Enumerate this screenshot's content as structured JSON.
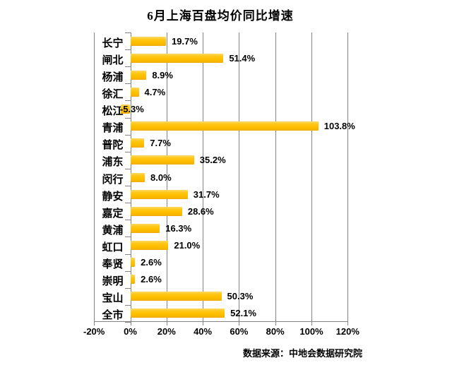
{
  "title": "6月上海百盘均价同比增速",
  "source": "数据来源：中地会数据研究院",
  "chart_data": {
    "type": "bar",
    "orientation": "horizontal",
    "title": "6月上海百盘均价同比增速",
    "categories": [
      "长宁",
      "闸北",
      "杨浦",
      "徐汇",
      "松江",
      "青浦",
      "普陀",
      "浦东",
      "闵行",
      "静安",
      "嘉定",
      "黄浦",
      "虹口",
      "奉贤",
      "崇明",
      "宝山",
      "全市"
    ],
    "values": [
      19.7,
      51.4,
      8.9,
      4.7,
      -5.3,
      103.8,
      7.7,
      35.2,
      8.0,
      31.7,
      28.6,
      16.3,
      21.0,
      2.6,
      2.6,
      50.3,
      52.1
    ],
    "data_labels": [
      "19.7%",
      "51.4%",
      "8.9%",
      "4.7%",
      "-5.3%",
      "103.8%",
      "7.7%",
      "35.2%",
      "8.0%",
      "31.7%",
      "28.6%",
      "16.3%",
      "21.0%",
      "2.6%",
      "2.6%",
      "50.3%",
      "52.1%"
    ],
    "x_tick_values": [
      -20,
      0,
      20,
      40,
      60,
      80,
      100,
      120
    ],
    "x_tick_labels": [
      "-20%",
      "0%",
      "20%",
      "40%",
      "60%",
      "80%",
      "100%",
      "120%"
    ],
    "xlim": [
      -20,
      120
    ],
    "grid": true,
    "legend": "none",
    "unit": "%",
    "bar_color": "#FFC000",
    "grid_color": "#848484",
    "text_color": "#000000",
    "background_color": "#FFFFFF"
  }
}
